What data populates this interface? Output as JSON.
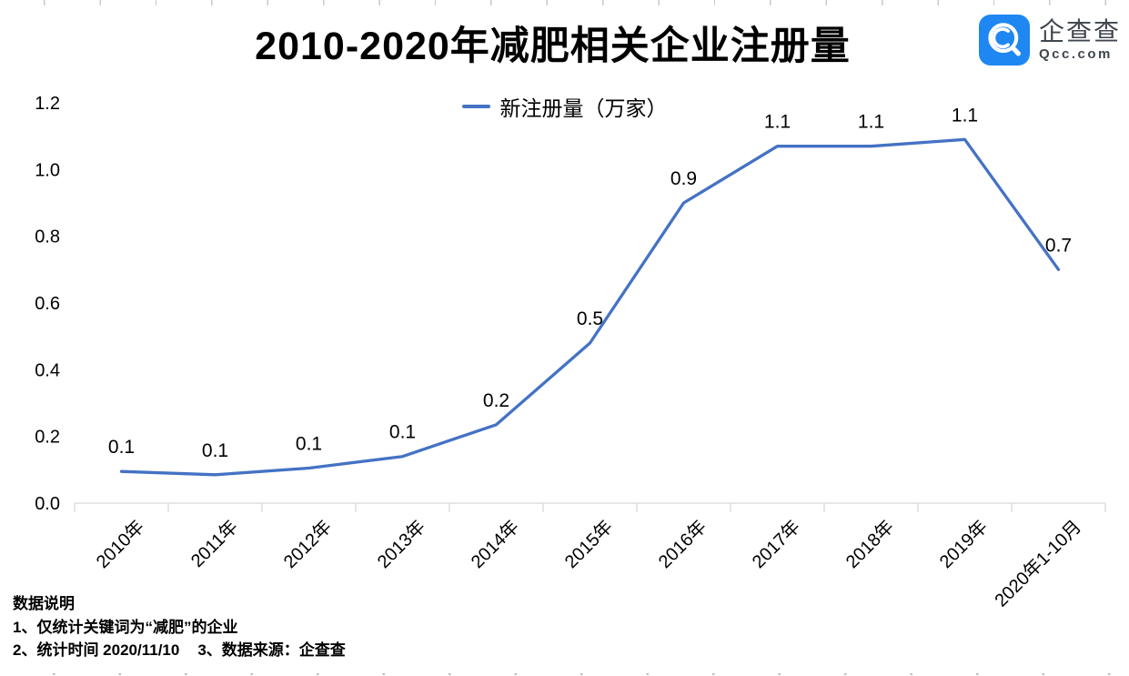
{
  "header": {
    "title": "2010-2020年减肥相关企业注册量",
    "logo": {
      "name": "企查查",
      "domain": "Qcc.com",
      "brand_color": "#1E87F2",
      "icon": "qcc-magnifier-icon"
    }
  },
  "legend": {
    "label": "新注册量（万家）",
    "line_color": "#4472C4"
  },
  "chart_data": {
    "type": "line",
    "title": "2010-2020年减肥相关企业注册量",
    "categories": [
      "2010年",
      "2011年",
      "2012年",
      "2013年",
      "2014年",
      "2015年",
      "2016年",
      "2017年",
      "2018年",
      "2019年",
      "2020年1-10月"
    ],
    "series": [
      {
        "name": "新注册量（万家）",
        "values": [
          0.1,
          0.1,
          0.1,
          0.1,
          0.2,
          0.5,
          0.9,
          1.1,
          1.1,
          1.1,
          0.7
        ],
        "plot_values": [
          0.095,
          0.085,
          0.105,
          0.14,
          0.235,
          0.48,
          0.9,
          1.07,
          1.07,
          1.09,
          0.7
        ]
      }
    ],
    "point_labels": [
      "0.1",
      "0.1",
      "0.1",
      "0.1",
      "0.2",
      "0.5",
      "0.9",
      "1.1",
      "1.1",
      "1.1",
      "0.7"
    ],
    "xlabel": "",
    "ylabel": "",
    "ylim": [
      0,
      1.2
    ],
    "yticks": [
      0.0,
      0.2,
      0.4,
      0.6,
      0.8,
      1.0,
      1.2
    ],
    "ytick_labels": [
      "0.0",
      "0.2",
      "0.4",
      "0.6",
      "0.8",
      "1.0",
      "1.2"
    ],
    "line_color": "#4472C4",
    "axis_color": "#d9d9d9",
    "grid": false,
    "legend_position": "top-center",
    "x_label_rotation": -45
  },
  "footnotes": {
    "heading": "数据说明",
    "line1": "1、仅统计关键词为“减肥”的企业",
    "line2": "2、统计时间 2020/11/10",
    "line3": "3、数据来源：企查查"
  }
}
